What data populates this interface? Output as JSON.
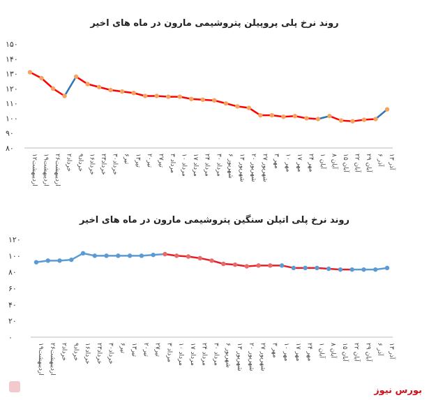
{
  "chart_data": [
    {
      "type": "line",
      "title": "روند نرخ پلی پروپیلن پتروشیمی مارون در ماه های اخیر",
      "ylim": [
        80,
        150
      ],
      "yticks": [
        "۸۰",
        "۹۰",
        "۱۰۰",
        "۱۱۰",
        "۱۲۰",
        "۱۳۰",
        "۱۴۰",
        "۱۵۰"
      ],
      "categories": [
        "۱۲اردیبهشت",
        "۱۹اردیبهشت",
        "۲۶اردیبهشت",
        "۲خرداد",
        "۹خرداد",
        "۱۶خرداد",
        "۲۳خرداد",
        "۳۰خرداد",
        "۶تیر",
        "۱۳تیر",
        "۲۰تیر",
        "۲۷تیر",
        "۳ مرداد",
        "۱۰ مرداد",
        "۱۷ مرداد",
        "۲۴ مرداد",
        "۳۰ مرداد",
        "۶ شهریور",
        "۱۳ شهریور",
        "۲۰ شهریور",
        "۲۷ شهریور",
        "۳ مهر",
        "۱۰ مهر",
        "۱۷ مهر",
        "۲۴ مهر",
        "۱ آبان",
        "۸ آبان",
        "۱۵ آبان",
        "۲۲ آبان",
        "۲۹ آبان",
        "۶ آذر",
        "۱۳ آذر"
      ],
      "values": [
        131,
        127,
        120,
        115,
        128,
        123,
        121,
        119,
        118,
        117,
        115,
        115,
        114.5,
        114.5,
        113,
        112.5,
        112,
        110,
        108,
        107,
        102,
        102,
        101,
        101.5,
        100,
        99.5,
        101.5,
        98.5,
        98,
        99,
        99.5,
        106
      ],
      "line_colors": {
        "base": "#2e75b6",
        "highlight": "#ff0000"
      },
      "marker_color": "#f4a460",
      "grid": false
    },
    {
      "type": "line",
      "title": "روند نرخ پلی اتیلن سنگین پتروشیمی مارون در ماه های اخیر",
      "ylim": [
        0,
        120
      ],
      "yticks": [
        "۰",
        "۲۰",
        "۴۰",
        "۶۰",
        "۸۰",
        "۱۰۰",
        "۱۲۰"
      ],
      "categories": [
        "۱۹اردیبهشت",
        "۲۶اردیبهشت",
        "۲خرداد",
        "۹خرداد",
        "۱۶خرداد",
        "۲۳خرداد",
        "۳۰خرداد",
        "۶تیر",
        "۱۳تیر",
        "۲۰تیر",
        "۲۷تیر",
        "۳ مرداد",
        "۱۰ مرداد",
        "۱۷ مرداد",
        "۲۴ مرداد",
        "۳۰ مرداد",
        "۶ شهریور",
        "۱۳ شهریور",
        "۲۰ شهریور",
        "۲۷ شهریور",
        "۳ مهر",
        "۱۰ مهر",
        "۱۷ مهر",
        "۲۴ مهر",
        "۱ آبان",
        "۸ آبان",
        "۱۵ آبان",
        "۲۲ آبان",
        "۲۹ آبان",
        "۶ آذر",
        "۱۳ آذر"
      ],
      "values": [
        92,
        94,
        94,
        95,
        103,
        100,
        100,
        100,
        100,
        100,
        101,
        102,
        100,
        99,
        97,
        94,
        90,
        89,
        87,
        88,
        88,
        88,
        85,
        85,
        85,
        84,
        83,
        83,
        83,
        83,
        85
      ],
      "line_colors": {
        "base": "#5b9bd5",
        "highlight": "#e31e24"
      },
      "marker_color": "#5b9bd5",
      "grid": false
    }
  ],
  "footer": {
    "brand": "بورس نیوز"
  }
}
